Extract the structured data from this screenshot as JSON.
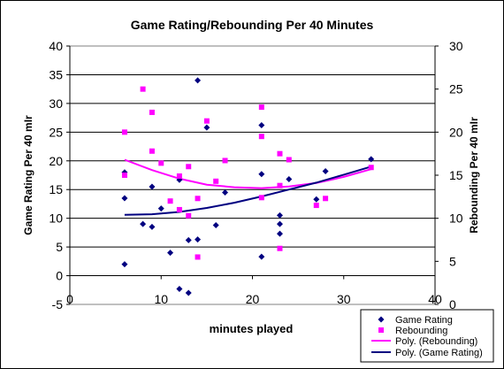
{
  "chart_data": {
    "type": "scatter",
    "title": "Game Rating/Rebounding Per 40 Minutes",
    "xlabel": "minutes played",
    "ylabel_left": "Game Rating Per 40 mIr",
    "ylabel_right": "Rebounding Per 40 mIr",
    "xlim": [
      0,
      40
    ],
    "ylim_left": [
      -5,
      40
    ],
    "ylim_right": [
      0,
      30
    ],
    "x_ticks": [
      "0",
      "10",
      "20",
      "30",
      "40"
    ],
    "y_left_ticks": [
      "-5",
      "0",
      "5",
      "10",
      "15",
      "20",
      "25",
      "30",
      "35",
      "40"
    ],
    "y_right_ticks": [
      "0",
      "5",
      "10",
      "15",
      "20",
      "25",
      "30"
    ],
    "grid": "horizontal",
    "legend_position": "bottom-right",
    "series": [
      {
        "name": "Game Rating",
        "axis": "left",
        "marker": "diamond",
        "color": "#000080",
        "points": [
          [
            6,
            18
          ],
          [
            6,
            2
          ],
          [
            6,
            13.5
          ],
          [
            8,
            9
          ],
          [
            9,
            15.5
          ],
          [
            9,
            8.5
          ],
          [
            10,
            11.7
          ],
          [
            11,
            4
          ],
          [
            12,
            16.7
          ],
          [
            12,
            -2.3
          ],
          [
            13,
            6.2
          ],
          [
            13,
            -3
          ],
          [
            14,
            6.3
          ],
          [
            14,
            34
          ],
          [
            15,
            25.8
          ],
          [
            16,
            8.8
          ],
          [
            17,
            14.5
          ],
          [
            21,
            26.2
          ],
          [
            21,
            17.7
          ],
          [
            21,
            3.3
          ],
          [
            23,
            10.5
          ],
          [
            23,
            9
          ],
          [
            23,
            7.3
          ],
          [
            24,
            16.8
          ],
          [
            27,
            13.3
          ],
          [
            28,
            18.2
          ],
          [
            33,
            20.3
          ]
        ]
      },
      {
        "name": "Rebounding",
        "axis": "right",
        "marker": "square",
        "color": "#ff00ff",
        "points": [
          [
            6,
            20
          ],
          [
            6,
            15
          ],
          [
            8,
            25
          ],
          [
            9,
            22.3
          ],
          [
            9,
            17.8
          ],
          [
            10,
            16.4
          ],
          [
            11,
            12
          ],
          [
            12,
            14.9
          ],
          [
            12,
            11
          ],
          [
            13,
            16
          ],
          [
            13,
            10.3
          ],
          [
            14,
            12.3
          ],
          [
            14,
            5.5
          ],
          [
            15,
            21.3
          ],
          [
            16,
            14.3
          ],
          [
            17,
            16.7
          ],
          [
            21,
            22.9
          ],
          [
            21,
            19.5
          ],
          [
            21,
            12.4
          ],
          [
            23,
            17.5
          ],
          [
            23,
            13.8
          ],
          [
            23,
            6.5
          ],
          [
            24,
            16.8
          ],
          [
            27,
            11.5
          ],
          [
            28,
            12.3
          ],
          [
            33,
            15.9
          ]
        ]
      },
      {
        "name": "Poly. (Rebounding)",
        "axis": "right",
        "type": "trendline",
        "color": "#ff00ff",
        "x": [
          6,
          9,
          12,
          15,
          18,
          21,
          24,
          27,
          30,
          33
        ],
        "values": [
          16.8,
          15.6,
          14.6,
          13.9,
          13.6,
          13.5,
          13.7,
          14.1,
          14.8,
          15.7
        ]
      },
      {
        "name": "Poly. (Game Rating)",
        "axis": "left",
        "type": "trendline",
        "color": "#000080",
        "x": [
          6,
          9,
          12,
          15,
          18,
          21,
          24,
          27,
          30,
          33
        ],
        "values": [
          10.6,
          10.7,
          11.1,
          11.8,
          12.7,
          13.8,
          15,
          16.2,
          17.6,
          19
        ]
      }
    ]
  }
}
